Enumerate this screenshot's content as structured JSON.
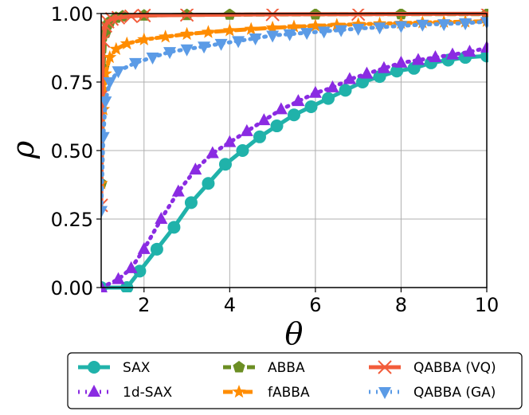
{
  "chart_data": {
    "type": "line",
    "title": "",
    "xlabel": "θ",
    "ylabel": "ρ",
    "xlim": [
      1,
      10
    ],
    "ylim": [
      0,
      1
    ],
    "xticks": [
      2,
      4,
      6,
      8,
      10
    ],
    "yticks": [
      "0.00",
      "0.25",
      "0.50",
      "0.75",
      "1.00"
    ],
    "grid": true,
    "legend_position": "below",
    "series": [
      {
        "name": "SAX",
        "color": "#20b2aa",
        "line": "solid",
        "marker": "circle",
        "x": [
          1.0,
          1.6,
          1.9,
          2.3,
          2.7,
          3.1,
          3.5,
          3.9,
          4.3,
          4.7,
          5.1,
          5.5,
          5.9,
          6.3,
          6.7,
          7.1,
          7.5,
          7.9,
          8.3,
          8.7,
          9.1,
          9.5,
          10.0
        ],
        "y": [
          0.0,
          0.0,
          0.06,
          0.14,
          0.22,
          0.31,
          0.38,
          0.45,
          0.5,
          0.55,
          0.59,
          0.63,
          0.66,
          0.69,
          0.72,
          0.75,
          0.77,
          0.79,
          0.8,
          0.82,
          0.83,
          0.84,
          0.845
        ]
      },
      {
        "name": "1d-SAX",
        "color": "#8a2be2",
        "line": "dotted",
        "marker": "triangle-up",
        "x": [
          1.0,
          1.4,
          1.7,
          2.0,
          2.4,
          2.8,
          3.2,
          3.6,
          4.0,
          4.4,
          4.8,
          5.2,
          5.6,
          6.0,
          6.4,
          6.8,
          7.2,
          7.6,
          8.0,
          8.4,
          8.8,
          9.2,
          9.6,
          10.0
        ],
        "y": [
          0.0,
          0.03,
          0.07,
          0.14,
          0.25,
          0.35,
          0.43,
          0.49,
          0.53,
          0.57,
          0.61,
          0.65,
          0.68,
          0.71,
          0.73,
          0.76,
          0.78,
          0.8,
          0.82,
          0.83,
          0.84,
          0.85,
          0.86,
          0.875
        ]
      },
      {
        "name": "ABBA",
        "color": "#6b8e23",
        "line": "dashed",
        "marker": "pentagon",
        "x": [
          1.0,
          1.05,
          1.1,
          1.15,
          1.2,
          1.35,
          1.5,
          2.0,
          3.0,
          4.0,
          6.0,
          8.0,
          10.0
        ],
        "y": [
          0.38,
          0.8,
          0.93,
          0.96,
          0.97,
          0.985,
          0.99,
          0.993,
          0.995,
          0.996,
          0.997,
          0.998,
          0.998
        ]
      },
      {
        "name": "fABBA",
        "color": "#ff8c00",
        "line": "dashdot",
        "marker": "star",
        "x": [
          1.0,
          1.05,
          1.1,
          1.2,
          1.35,
          1.6,
          2.0,
          2.5,
          3.0,
          3.5,
          4.0,
          4.5,
          5.0,
          5.5,
          6.0,
          6.5,
          7.0,
          7.5,
          8.0,
          8.5,
          9.0,
          9.5,
          10.0
        ],
        "y": [
          0.38,
          0.65,
          0.78,
          0.84,
          0.87,
          0.89,
          0.905,
          0.915,
          0.925,
          0.932,
          0.938,
          0.943,
          0.948,
          0.952,
          0.955,
          0.958,
          0.961,
          0.963,
          0.965,
          0.967,
          0.969,
          0.97,
          0.972
        ]
      },
      {
        "name": "QABBA (VQ)",
        "color": "#f25c3b",
        "line": "solid",
        "marker": "x",
        "x": [
          1.0,
          1.02,
          1.05,
          1.1,
          1.15,
          1.25,
          1.4,
          1.7,
          2.0,
          3.0,
          5.0,
          7.0,
          10.0
        ],
        "y": [
          0.3,
          0.7,
          0.9,
          0.955,
          0.97,
          0.98,
          0.985,
          0.99,
          0.993,
          0.995,
          0.997,
          0.998,
          0.999
        ]
      },
      {
        "name": "QABBA (GA)",
        "color": "#5b9be6",
        "line": "dotted",
        "marker": "triangle-down",
        "x": [
          1.0,
          1.05,
          1.1,
          1.2,
          1.4,
          1.8,
          2.2,
          2.6,
          3.0,
          3.4,
          3.8,
          4.2,
          4.6,
          5.0,
          5.4,
          5.8,
          6.2,
          6.6,
          7.0,
          7.5,
          8.0,
          8.5,
          9.0,
          9.5,
          10.0
        ],
        "y": [
          0.28,
          0.55,
          0.68,
          0.75,
          0.79,
          0.82,
          0.84,
          0.86,
          0.87,
          0.88,
          0.89,
          0.9,
          0.91,
          0.92,
          0.925,
          0.93,
          0.935,
          0.94,
          0.945,
          0.95,
          0.955,
          0.96,
          0.962,
          0.965,
          0.97
        ]
      }
    ]
  }
}
